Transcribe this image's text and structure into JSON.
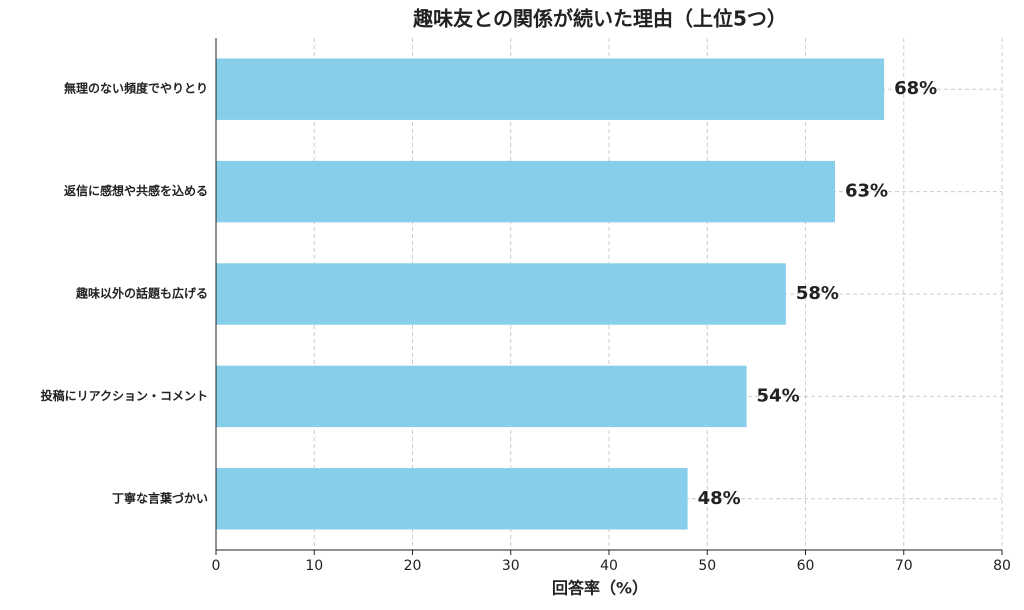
{
  "chart_data": {
    "type": "barh",
    "title": "趣味友との関係が続いた理由（上位5つ）",
    "xlabel": "回答率（%）",
    "categories": [
      "無理のない頻度でやりとり",
      "返信に感想や共感を込める",
      "趣味以外の話題も広げる",
      "投稿にリアクション・コメント",
      "丁寧な言葉づかい"
    ],
    "values": [
      68,
      63,
      58,
      54,
      48
    ],
    "value_labels": [
      "68%",
      "63%",
      "58%",
      "54%",
      "48%"
    ],
    "color": "#87ceeb",
    "xlim": [
      0,
      80
    ],
    "xticks": [
      0,
      10,
      20,
      30,
      40,
      50,
      60,
      70,
      80
    ],
    "grid": true
  }
}
